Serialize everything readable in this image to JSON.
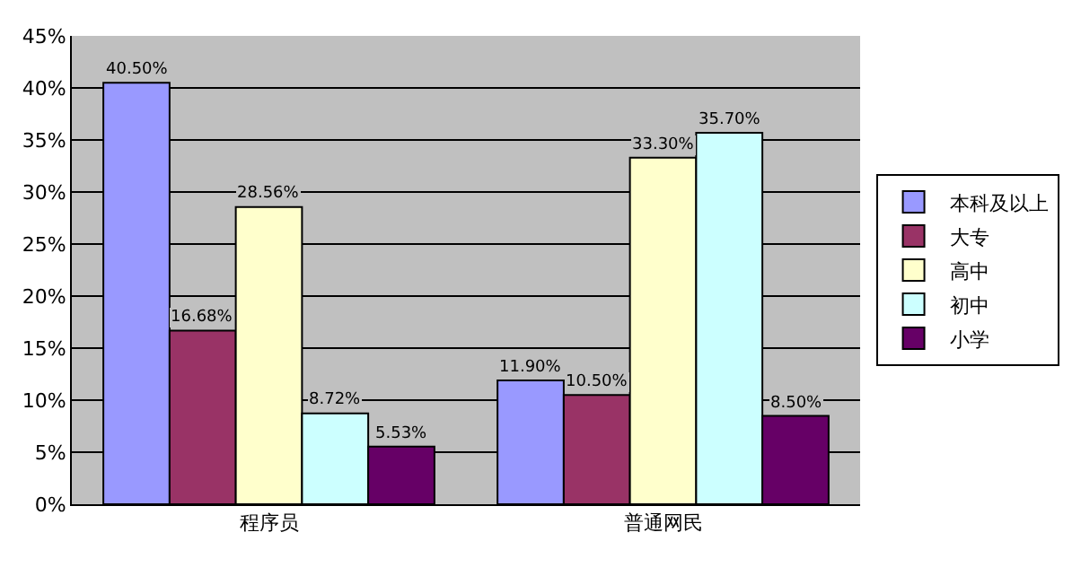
{
  "chart_data": {
    "type": "bar",
    "categories": [
      "程序员",
      "普通网民"
    ],
    "series": [
      {
        "name": "本科及以上",
        "color": "#9999ff",
        "values": [
          40.5,
          11.9
        ],
        "value_labels": [
          "40.50%",
          "11.90%"
        ]
      },
      {
        "name": "大专",
        "color": "#993366",
        "values": [
          16.68,
          10.5
        ],
        "value_labels": [
          "16.68%",
          "10.50%"
        ]
      },
      {
        "name": "高中",
        "color": "#ffffcc",
        "values": [
          28.56,
          33.3
        ],
        "value_labels": [
          "28.56%",
          "33.30%"
        ]
      },
      {
        "name": "初中",
        "color": "#ccffff",
        "values": [
          8.72,
          35.7
        ],
        "value_labels": [
          "8.72%",
          "35.70%"
        ]
      },
      {
        "name": "小学",
        "color": "#660066",
        "values": [
          5.53,
          8.5
        ],
        "value_labels": [
          "5.53%",
          "8.50%"
        ]
      }
    ],
    "ylim": [
      0,
      45
    ],
    "yticks": [
      {
        "value": 0,
        "label": "0%"
      },
      {
        "value": 5,
        "label": "5%"
      },
      {
        "value": 10,
        "label": "10%"
      },
      {
        "value": 15,
        "label": "15%"
      },
      {
        "value": 20,
        "label": "20%"
      },
      {
        "value": 25,
        "label": "25%"
      },
      {
        "value": 30,
        "label": "30%"
      },
      {
        "value": 35,
        "label": "35%"
      },
      {
        "value": 40,
        "label": "40%"
      },
      {
        "value": 45,
        "label": "45%"
      }
    ],
    "grid": "y",
    "legend": "right"
  }
}
